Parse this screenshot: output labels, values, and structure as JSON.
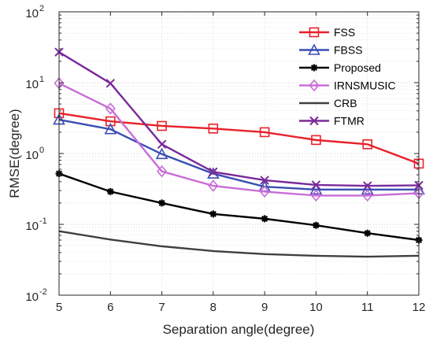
{
  "chart_data": {
    "type": "line",
    "xlabel": "Separation angle(degree)",
    "ylabel": "RMSE(degree)",
    "xlim": [
      5,
      12
    ],
    "ylim": [
      0.01,
      100
    ],
    "yscale": "log",
    "grid": true,
    "legend_position": "top-right",
    "x_ticks": [
      5,
      6,
      7,
      8,
      9,
      10,
      11,
      12
    ],
    "x_tick_labels": [
      "5",
      "6",
      "7",
      "8",
      "9",
      "10",
      "11",
      "12"
    ],
    "y_ticks": [
      {
        "value": 0.01,
        "base": "10",
        "exp": "-2"
      },
      {
        "value": 0.1,
        "base": "10",
        "exp": "-1"
      },
      {
        "value": 1,
        "base": "10",
        "exp": "0"
      },
      {
        "value": 10,
        "base": "10",
        "exp": "1"
      },
      {
        "value": 100,
        "base": "10",
        "exp": "2"
      }
    ],
    "x": [
      5,
      6,
      7,
      8,
      9,
      10,
      11,
      12
    ],
    "series": [
      {
        "name": "FSS",
        "color": "#e8212b",
        "marker": "square",
        "values": [
          3.7,
          2.85,
          2.45,
          2.25,
          2.0,
          1.55,
          1.35,
          0.72
        ]
      },
      {
        "name": "FBSS",
        "color": "#3a4fb3",
        "marker": "triangle",
        "values": [
          3.0,
          2.2,
          0.98,
          0.52,
          0.34,
          0.31,
          0.31,
          0.31
        ]
      },
      {
        "name": "Proposed",
        "color": "#000000",
        "marker": "asterisk",
        "values": [
          0.52,
          0.29,
          0.2,
          0.14,
          0.12,
          0.097,
          0.075,
          0.06
        ]
      },
      {
        "name": "IRNSMUSIC",
        "color": "#c86dd7",
        "marker": "diamond",
        "values": [
          9.8,
          4.3,
          0.56,
          0.35,
          0.29,
          0.255,
          0.255,
          0.275
        ]
      },
      {
        "name": "CRB",
        "color": "#404040",
        "marker": "none",
        "values": [
          0.08,
          0.061,
          0.049,
          0.042,
          0.038,
          0.036,
          0.035,
          0.036
        ]
      },
      {
        "name": "FTMR",
        "color": "#7a2a9a",
        "marker": "x",
        "values": [
          27,
          9.8,
          1.35,
          0.55,
          0.42,
          0.36,
          0.35,
          0.355
        ]
      }
    ]
  }
}
